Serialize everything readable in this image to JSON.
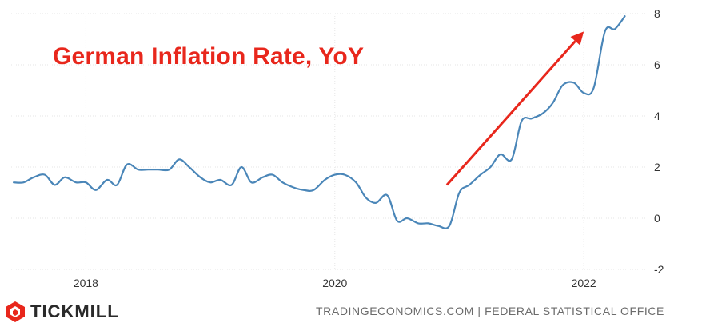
{
  "annotation_title": "German Inflation Rate, YoY",
  "brand": {
    "name": "TICKMILL",
    "logo_icon": "tickmill-logo-icon",
    "logo_color": "#e8271c"
  },
  "source_text": "TRADINGECONOMICS.COM | FEDERAL STATISTICAL OFFICE",
  "colors": {
    "line": "#4a86b8",
    "arrow": "#e8271c",
    "grid": "#e6e6e6"
  },
  "chart_data": {
    "type": "line",
    "title": "",
    "xlabel": "",
    "ylabel": "",
    "ylim": [
      -2,
      8
    ],
    "y_ticks": [
      8,
      6,
      4,
      2,
      0,
      -2
    ],
    "x_ticks": [
      {
        "label": "2018",
        "x": 2018.0
      },
      {
        "label": "2020",
        "x": 2020.0
      },
      {
        "label": "2022",
        "x": 2022.0
      }
    ],
    "xlim": [
      2017.4,
      2022.5
    ],
    "grid": true,
    "y_axis_position": "right",
    "series": [
      {
        "x": [
          2017.42,
          2017.5,
          2017.58,
          2017.67,
          2017.75,
          2017.83,
          2017.92,
          2018.0,
          2018.08,
          2018.17,
          2018.25,
          2018.33,
          2018.42,
          2018.5,
          2018.58,
          2018.67,
          2018.75,
          2018.83,
          2018.92,
          2019.0,
          2019.08,
          2019.17,
          2019.25,
          2019.33,
          2019.42,
          2019.5,
          2019.58,
          2019.67,
          2019.75,
          2019.83,
          2019.92,
          2020.0,
          2020.08,
          2020.17,
          2020.25,
          2020.33,
          2020.42,
          2020.5,
          2020.58,
          2020.67,
          2020.75,
          2020.83,
          2020.92,
          2021.0,
          2021.08,
          2021.17,
          2021.25,
          2021.33,
          2021.42,
          2021.5,
          2021.58,
          2021.67,
          2021.75,
          2021.83,
          2021.92,
          2022.0,
          2022.08,
          2022.17,
          2022.25,
          2022.33
        ],
        "values": [
          1.4,
          1.4,
          1.6,
          1.7,
          1.3,
          1.6,
          1.4,
          1.4,
          1.1,
          1.5,
          1.3,
          2.1,
          1.9,
          1.9,
          1.9,
          1.9,
          2.3,
          2.0,
          1.6,
          1.4,
          1.5,
          1.3,
          2.0,
          1.4,
          1.6,
          1.7,
          1.4,
          1.2,
          1.1,
          1.1,
          1.5,
          1.7,
          1.7,
          1.4,
          0.8,
          0.6,
          0.9,
          -0.1,
          0.0,
          -0.2,
          -0.2,
          -0.3,
          -0.3,
          1.0,
          1.3,
          1.7,
          2.0,
          2.5,
          2.3,
          3.8,
          3.9,
          4.1,
          4.5,
          5.2,
          5.3,
          4.9,
          5.1,
          7.3,
          7.4,
          7.9
        ]
      }
    ],
    "arrow": {
      "from": {
        "x": 2020.9,
        "y": 1.3
      },
      "to": {
        "x": 2022.0,
        "y": 7.3
      }
    }
  }
}
